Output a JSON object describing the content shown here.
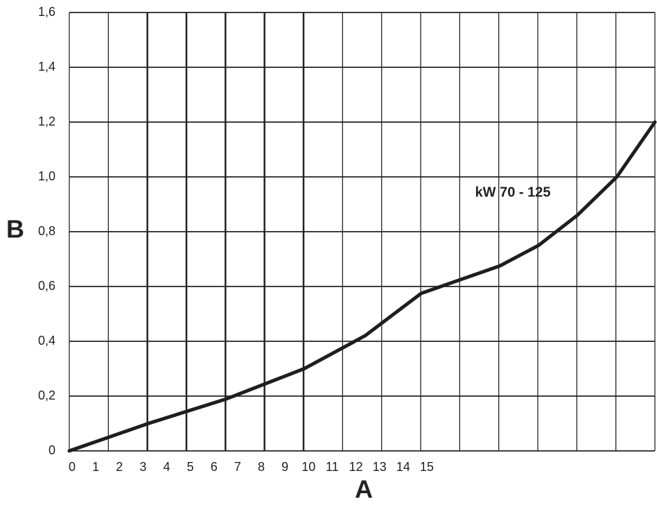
{
  "chart_data": {
    "type": "line",
    "x_label": "A",
    "y_label": "B",
    "annotation": "kW 70 - 125",
    "x": [
      0,
      3.34,
      6.65,
      9.93,
      12.5,
      14.88,
      18.2,
      19.84,
      21.48,
      23.15,
      24.76
    ],
    "values": [
      0,
      0.1,
      0.19,
      0.3,
      0.42,
      0.575,
      0.675,
      0.75,
      0.86,
      1.0,
      1.2
    ],
    "color": "#1e1e1e",
    "xlim": [
      0,
      24.76
    ],
    "ylim": [
      0,
      1.6
    ],
    "xticks": [
      0,
      1,
      2,
      3,
      4,
      5,
      6,
      7,
      8,
      9,
      10,
      11,
      12,
      13,
      14,
      15
    ],
    "yticks": [
      0,
      {
        "value": 0.2,
        "label": "0,2"
      },
      {
        "value": 0.4,
        "label": "0,4"
      },
      {
        "value": 0.6,
        "label": "0,6"
      },
      {
        "value": 0.8,
        "label": "0,8"
      },
      {
        "value": 1.0,
        "label": "1,0"
      },
      {
        "value": 1.2,
        "label": "1,2"
      },
      {
        "value": 1.4,
        "label": "1,4"
      },
      {
        "value": 1.6,
        "label": "1,6"
      }
    ],
    "grid": true
  }
}
